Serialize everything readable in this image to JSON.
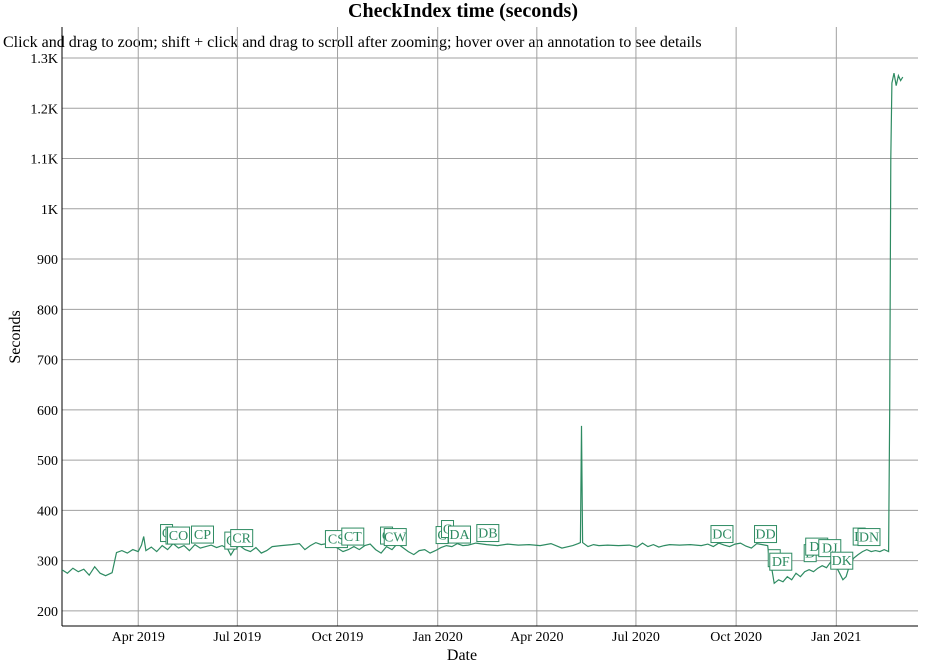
{
  "title": "CheckIndex time (seconds)",
  "subtitle": "Click and drag to zoom; shift + click and drag to scroll after zooming; hover over an annotation to see details",
  "colors": {
    "series": "#2e8b62",
    "grid": "#a0a0a0",
    "axis": "#000000"
  },
  "chart_data": {
    "type": "line",
    "title": "CheckIndex time (seconds)",
    "xlabel": "Date",
    "ylabel": "Seconds",
    "xlim": [
      "2019-01-21",
      "2021-03-17"
    ],
    "ylim": [
      170,
      1300
    ],
    "grid": true,
    "legend": "none",
    "x_ticks": [
      {
        "date": "2019-04-01",
        "label": "Apr 2019"
      },
      {
        "date": "2019-07-01",
        "label": "Jul 2019"
      },
      {
        "date": "2019-10-01",
        "label": "Oct 2019"
      },
      {
        "date": "2020-01-01",
        "label": "Jan 2020"
      },
      {
        "date": "2020-04-01",
        "label": "Apr 2020"
      },
      {
        "date": "2020-07-01",
        "label": "Jul 2020"
      },
      {
        "date": "2020-10-01",
        "label": "Oct 2020"
      },
      {
        "date": "2021-01-01",
        "label": "Jan 2021"
      }
    ],
    "y_ticks": [
      {
        "value": 200,
        "label": "200"
      },
      {
        "value": 300,
        "label": "300"
      },
      {
        "value": 400,
        "label": "400"
      },
      {
        "value": 500,
        "label": "500"
      },
      {
        "value": 600,
        "label": "600"
      },
      {
        "value": 700,
        "label": "700"
      },
      {
        "value": 800,
        "label": "800"
      },
      {
        "value": 900,
        "label": "900"
      },
      {
        "value": 1000,
        "label": "1K"
      },
      {
        "value": 1100,
        "label": "1.1K"
      },
      {
        "value": 1200,
        "label": "1.2K"
      },
      {
        "value": 1300,
        "label": "1.3K"
      }
    ],
    "series": [
      {
        "points": [
          [
            "2019-01-21",
            282
          ],
          [
            "2019-01-26",
            275
          ],
          [
            "2019-01-31",
            285
          ],
          [
            "2019-02-05",
            278
          ],
          [
            "2019-02-10",
            283
          ],
          [
            "2019-02-15",
            271
          ],
          [
            "2019-02-20",
            288
          ],
          [
            "2019-02-25",
            275
          ],
          [
            "2019-03-02",
            270
          ],
          [
            "2019-03-08",
            276
          ],
          [
            "2019-03-12",
            316
          ],
          [
            "2019-03-17",
            320
          ],
          [
            "2019-03-22",
            315
          ],
          [
            "2019-03-27",
            322
          ],
          [
            "2019-04-01",
            318
          ],
          [
            "2019-04-04",
            331
          ],
          [
            "2019-04-06",
            348
          ],
          [
            "2019-04-08",
            320
          ],
          [
            "2019-04-13",
            327
          ],
          [
            "2019-04-18",
            318
          ],
          [
            "2019-04-23",
            330
          ],
          [
            "2019-04-28",
            322
          ],
          [
            "2019-05-03",
            334
          ],
          [
            "2019-05-08",
            325
          ],
          [
            "2019-05-13",
            330
          ],
          [
            "2019-05-18",
            320
          ],
          [
            "2019-05-23",
            332
          ],
          [
            "2019-05-28",
            325
          ],
          [
            "2019-06-02",
            328
          ],
          [
            "2019-06-07",
            331
          ],
          [
            "2019-06-12",
            326
          ],
          [
            "2019-06-17",
            330
          ],
          [
            "2019-06-22",
            324
          ],
          [
            "2019-06-25",
            311
          ],
          [
            "2019-06-28",
            322
          ],
          [
            "2019-07-03",
            330
          ],
          [
            "2019-07-08",
            322
          ],
          [
            "2019-07-13",
            318
          ],
          [
            "2019-07-18",
            326
          ],
          [
            "2019-07-23",
            315
          ],
          [
            "2019-07-28",
            320
          ],
          [
            "2019-08-02",
            328
          ],
          [
            "2019-08-10",
            330
          ],
          [
            "2019-08-20",
            332
          ],
          [
            "2019-08-27",
            334
          ],
          [
            "2019-09-01",
            322
          ],
          [
            "2019-09-06",
            330
          ],
          [
            "2019-09-11",
            336
          ],
          [
            "2019-09-16",
            332
          ],
          [
            "2019-09-21",
            334
          ],
          [
            "2019-09-26",
            331
          ],
          [
            "2019-10-01",
            325
          ],
          [
            "2019-10-06",
            318
          ],
          [
            "2019-10-11",
            322
          ],
          [
            "2019-10-16",
            328
          ],
          [
            "2019-10-21",
            322
          ],
          [
            "2019-10-26",
            330
          ],
          [
            "2019-10-31",
            333
          ],
          [
            "2019-11-05",
            322
          ],
          [
            "2019-11-10",
            315
          ],
          [
            "2019-11-15",
            328
          ],
          [
            "2019-11-20",
            322
          ],
          [
            "2019-11-25",
            334
          ],
          [
            "2019-11-30",
            326
          ],
          [
            "2019-12-05",
            318
          ],
          [
            "2019-12-10",
            312
          ],
          [
            "2019-12-15",
            320
          ],
          [
            "2019-12-20",
            322
          ],
          [
            "2019-12-25",
            315
          ],
          [
            "2019-12-30",
            320
          ],
          [
            "2020-01-04",
            326
          ],
          [
            "2020-01-09",
            330
          ],
          [
            "2020-01-14",
            328
          ],
          [
            "2020-01-19",
            334
          ],
          [
            "2020-01-24",
            330
          ],
          [
            "2020-01-29",
            331
          ],
          [
            "2020-02-05",
            335
          ],
          [
            "2020-02-15",
            332
          ],
          [
            "2020-02-25",
            330
          ],
          [
            "2020-03-05",
            333
          ],
          [
            "2020-03-15",
            331
          ],
          [
            "2020-03-25",
            332
          ],
          [
            "2020-04-04",
            330
          ],
          [
            "2020-04-14",
            334
          ],
          [
            "2020-04-24",
            325
          ],
          [
            "2020-05-04",
            330
          ],
          [
            "2020-05-09",
            334
          ],
          [
            "2020-05-11",
            336
          ],
          [
            "2020-05-12",
            568
          ],
          [
            "2020-05-13",
            336
          ],
          [
            "2020-05-18",
            328
          ],
          [
            "2020-05-23",
            332
          ],
          [
            "2020-05-28",
            330
          ],
          [
            "2020-06-05",
            331
          ],
          [
            "2020-06-15",
            330
          ],
          [
            "2020-06-25",
            331
          ],
          [
            "2020-07-02",
            327
          ],
          [
            "2020-07-07",
            335
          ],
          [
            "2020-07-12",
            328
          ],
          [
            "2020-07-17",
            332
          ],
          [
            "2020-07-22",
            327
          ],
          [
            "2020-07-27",
            330
          ],
          [
            "2020-08-01",
            332
          ],
          [
            "2020-08-10",
            331
          ],
          [
            "2020-08-20",
            332
          ],
          [
            "2020-08-30",
            330
          ],
          [
            "2020-09-05",
            333
          ],
          [
            "2020-09-10",
            328
          ],
          [
            "2020-09-15",
            335
          ],
          [
            "2020-09-20",
            331
          ],
          [
            "2020-09-25",
            328
          ],
          [
            "2020-09-30",
            333
          ],
          [
            "2020-10-05",
            335
          ],
          [
            "2020-10-10",
            329
          ],
          [
            "2020-10-15",
            325
          ],
          [
            "2020-10-20",
            334
          ],
          [
            "2020-10-25",
            332
          ],
          [
            "2020-10-30",
            330
          ],
          [
            "2020-11-01",
            290
          ],
          [
            "2020-11-03",
            280
          ],
          [
            "2020-11-05",
            255
          ],
          [
            "2020-11-09",
            262
          ],
          [
            "2020-11-13",
            258
          ],
          [
            "2020-11-17",
            268
          ],
          [
            "2020-11-21",
            262
          ],
          [
            "2020-11-25",
            275
          ],
          [
            "2020-11-29",
            268
          ],
          [
            "2020-12-03",
            278
          ],
          [
            "2020-12-07",
            282
          ],
          [
            "2020-12-11",
            278
          ],
          [
            "2020-12-15",
            285
          ],
          [
            "2020-12-19",
            290
          ],
          [
            "2020-12-23",
            286
          ],
          [
            "2020-12-27",
            298
          ],
          [
            "2020-12-31",
            292
          ],
          [
            "2021-01-04",
            275
          ],
          [
            "2021-01-07",
            262
          ],
          [
            "2021-01-10",
            268
          ],
          [
            "2021-01-13",
            290
          ],
          [
            "2021-01-17",
            305
          ],
          [
            "2021-01-21",
            312
          ],
          [
            "2021-01-25",
            318
          ],
          [
            "2021-01-29",
            322
          ],
          [
            "2021-02-02",
            318
          ],
          [
            "2021-02-06",
            320
          ],
          [
            "2021-02-10",
            318
          ],
          [
            "2021-02-14",
            322
          ],
          [
            "2021-02-18",
            318
          ],
          [
            "2021-02-19",
            600
          ],
          [
            "2021-02-20",
            1100
          ],
          [
            "2021-02-21",
            1250
          ],
          [
            "2021-02-23",
            1270
          ],
          [
            "2021-02-25",
            1245
          ],
          [
            "2021-02-27",
            1265
          ],
          [
            "2021-03-01",
            1255
          ],
          [
            "2021-03-03",
            1262
          ]
        ]
      }
    ],
    "annotations": [
      {
        "label": "C",
        "date": "2019-04-27",
        "value": 340
      },
      {
        "label": "C",
        "date": "2019-05-02",
        "value": 335
      },
      {
        "label": "CO",
        "date": "2019-05-08",
        "value": 335
      },
      {
        "label": "CP",
        "date": "2019-05-30",
        "value": 337
      },
      {
        "label": "C",
        "date": "2019-06-25",
        "value": 325
      },
      {
        "label": "CR",
        "date": "2019-07-05",
        "value": 330
      },
      {
        "label": "CS",
        "date": "2019-09-30",
        "value": 328
      },
      {
        "label": "CT",
        "date": "2019-10-15",
        "value": 333
      },
      {
        "label": "C",
        "date": "2019-11-15",
        "value": 335
      },
      {
        "label": "CW",
        "date": "2019-11-23",
        "value": 332
      },
      {
        "label": "C",
        "date": "2020-01-05",
        "value": 336
      },
      {
        "label": "C",
        "date": "2020-01-10",
        "value": 348
      },
      {
        "label": "DA",
        "date": "2020-01-21",
        "value": 337
      },
      {
        "label": "DB",
        "date": "2020-02-16",
        "value": 340
      },
      {
        "label": "DC",
        "date": "2020-09-18",
        "value": 338
      },
      {
        "label": "DD",
        "date": "2020-10-28",
        "value": 338
      },
      {
        "label": "D",
        "date": "2020-11-05",
        "value": 290
      },
      {
        "label": "DF",
        "date": "2020-11-11",
        "value": 283
      },
      {
        "label": "D",
        "date": "2020-12-08",
        "value": 300
      },
      {
        "label": "DI",
        "date": "2020-12-14",
        "value": 313
      },
      {
        "label": "DJ",
        "date": "2020-12-26",
        "value": 310
      },
      {
        "label": "DK",
        "date": "2021-01-06",
        "value": 285
      },
      {
        "label": "D",
        "date": "2021-01-22",
        "value": 333
      },
      {
        "label": "DN",
        "date": "2021-01-31",
        "value": 332
      }
    ]
  }
}
